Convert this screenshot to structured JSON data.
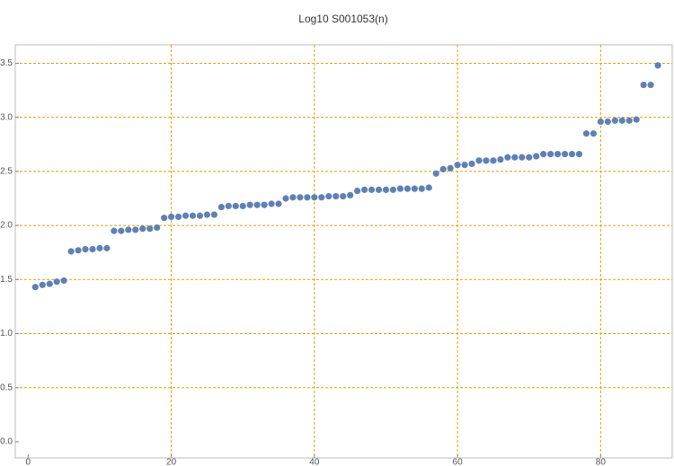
{
  "chart_data": {
    "type": "scatter",
    "title": "Log10 S001053(n)",
    "color": "#5e81b5",
    "grid": true,
    "grid_color": "#e69f00",
    "x": [
      1,
      2,
      3,
      4,
      5,
      6,
      7,
      8,
      9,
      10,
      11,
      12,
      13,
      14,
      15,
      16,
      17,
      18,
      19,
      20,
      21,
      22,
      23,
      24,
      25,
      26,
      27,
      28,
      29,
      30,
      31,
      32,
      33,
      34,
      35,
      36,
      37,
      38,
      39,
      40,
      41,
      42,
      43,
      44,
      45,
      46,
      47,
      48,
      49,
      50,
      51,
      52,
      53,
      54,
      55,
      56,
      57,
      58,
      59,
      60,
      61,
      62,
      63,
      64,
      65,
      66,
      67,
      68,
      69,
      70,
      71,
      72,
      73,
      74,
      75,
      76,
      77,
      78,
      79,
      80,
      81,
      82,
      83,
      84,
      85,
      86,
      87,
      88
    ],
    "values": [
      1.43,
      1.45,
      1.46,
      1.48,
      1.49,
      1.76,
      1.77,
      1.78,
      1.78,
      1.79,
      1.79,
      1.95,
      1.95,
      1.96,
      1.96,
      1.97,
      1.97,
      1.98,
      2.07,
      2.08,
      2.08,
      2.09,
      2.09,
      2.09,
      2.1,
      2.1,
      2.17,
      2.18,
      2.18,
      2.18,
      2.19,
      2.19,
      2.19,
      2.2,
      2.2,
      2.25,
      2.26,
      2.26,
      2.26,
      2.26,
      2.26,
      2.27,
      2.27,
      2.27,
      2.28,
      2.32,
      2.33,
      2.33,
      2.33,
      2.33,
      2.33,
      2.34,
      2.34,
      2.34,
      2.34,
      2.35,
      2.48,
      2.52,
      2.53,
      2.56,
      2.56,
      2.57,
      2.6,
      2.6,
      2.6,
      2.61,
      2.63,
      2.63,
      2.63,
      2.63,
      2.64,
      2.66,
      2.66,
      2.66,
      2.66,
      2.66,
      2.66,
      2.85,
      2.85,
      2.96,
      2.96,
      2.97,
      2.97,
      2.97,
      2.98,
      3.3,
      3.3,
      3.48
    ],
    "xlim": [
      -1.8,
      90
    ],
    "ylim": [
      -0.15,
      3.67
    ],
    "xticks": [
      0,
      20,
      40,
      60,
      80
    ],
    "yticks": [
      {
        "value": 0,
        "label": "0.0"
      },
      0.5,
      {
        "value": 1,
        "label": "1.0"
      },
      1.5,
      {
        "value": 2,
        "label": "2.0"
      },
      2.5,
      {
        "value": 3,
        "label": "3.0"
      },
      3.5
    ]
  }
}
